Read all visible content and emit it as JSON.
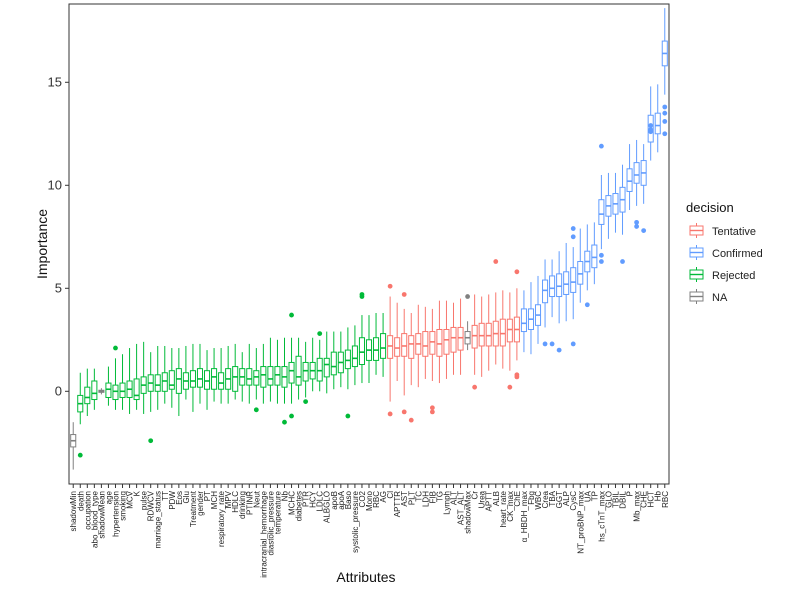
{
  "chart_data": {
    "type": "boxplot",
    "title": "",
    "xlabel": "Attributes",
    "ylabel": "Importance",
    "ylim": [
      -4.5,
      18.8
    ],
    "yticks": [
      0,
      5,
      10,
      15
    ],
    "grid": false,
    "legend": {
      "title": "decision",
      "placement": "right",
      "entries": [
        {
          "name": "Tentative",
          "color": "#F8766D"
        },
        {
          "name": "Confirmed",
          "color": "#619CFF"
        },
        {
          "name": "Rejected",
          "color": "#00BA38"
        },
        {
          "name": "NA",
          "color": "#808080"
        }
      ]
    },
    "items": [
      {
        "name": "shadowMin",
        "decision": "NA",
        "min": -3.8,
        "q1": -2.7,
        "median": -2.4,
        "q3": -2.1,
        "max": -1.5,
        "outliers": []
      },
      {
        "name": "death",
        "decision": "Rejected",
        "min": -1.6,
        "q1": -1.0,
        "median": -0.6,
        "q3": -0.2,
        "max": 0.9,
        "outliers": [
          -3.1
        ]
      },
      {
        "name": "occupation",
        "decision": "Rejected",
        "min": -1.2,
        "q1": -0.6,
        "median": -0.3,
        "q3": 0.2,
        "max": 1.1,
        "outliers": []
      },
      {
        "name": "abo_blood_type",
        "decision": "Rejected",
        "min": -0.9,
        "q1": -0.4,
        "median": -0.1,
        "q3": 0.5,
        "max": 1.1,
        "outliers": []
      },
      {
        "name": "shadowMean",
        "decision": "NA",
        "min": -0.15,
        "q1": -0.05,
        "median": 0.0,
        "q3": 0.05,
        "max": 0.15,
        "outliers": []
      },
      {
        "name": "age",
        "decision": "Rejected",
        "min": -0.7,
        "q1": -0.3,
        "median": 0.1,
        "q3": 0.4,
        "max": 1.2,
        "outliers": []
      },
      {
        "name": "hypertension",
        "decision": "Rejected",
        "min": -0.9,
        "q1": -0.4,
        "median": 0.0,
        "q3": 0.3,
        "max": 1.6,
        "outliers": [
          2.1
        ]
      },
      {
        "name": "smoking",
        "decision": "Rejected",
        "min": -0.9,
        "q1": -0.3,
        "median": 0.0,
        "q3": 0.4,
        "max": 1.8,
        "outliers": []
      },
      {
        "name": "MCV",
        "decision": "Rejected",
        "min": -1.1,
        "q1": -0.3,
        "median": 0.1,
        "q3": 0.5,
        "max": 2.1,
        "outliers": []
      },
      {
        "name": "K",
        "decision": "Rejected",
        "min": -0.9,
        "q1": -0.4,
        "median": -0.2,
        "q3": 0.6,
        "max": 2.3,
        "outliers": []
      },
      {
        "name": "pulse",
        "decision": "Rejected",
        "min": -1.1,
        "q1": -0.1,
        "median": 0.3,
        "q3": 0.7,
        "max": 2.4,
        "outliers": []
      },
      {
        "name": "RDWCV",
        "decision": "Rejected",
        "min": -1.0,
        "q1": 0.0,
        "median": 0.4,
        "q3": 0.8,
        "max": 1.9,
        "outliers": [
          -2.4
        ]
      },
      {
        "name": "marriage_status",
        "decision": "Rejected",
        "min": -0.9,
        "q1": 0.0,
        "median": 0.3,
        "q3": 0.8,
        "max": 2.2,
        "outliers": []
      },
      {
        "name": "TT",
        "decision": "Rejected",
        "min": -0.6,
        "q1": 0.0,
        "median": 0.5,
        "q3": 0.9,
        "max": 2.2,
        "outliers": []
      },
      {
        "name": "PDW",
        "decision": "Rejected",
        "min": -0.8,
        "q1": 0.1,
        "median": 0.3,
        "q3": 1.0,
        "max": 2.1,
        "outliers": []
      },
      {
        "name": "Eos",
        "decision": "Rejected",
        "min": -1.2,
        "q1": -0.1,
        "median": 0.6,
        "q3": 1.1,
        "max": 2.1,
        "outliers": []
      },
      {
        "name": "Glu",
        "decision": "Rejected",
        "min": -0.4,
        "q1": 0.1,
        "median": 0.5,
        "q3": 0.9,
        "max": 2.2,
        "outliers": []
      },
      {
        "name": "Treatment",
        "decision": "Rejected",
        "min": -1.0,
        "q1": 0.2,
        "median": 0.5,
        "q3": 1.0,
        "max": 2.3,
        "outliers": []
      },
      {
        "name": "gender",
        "decision": "Rejected",
        "min": -0.6,
        "q1": 0.2,
        "median": 0.6,
        "q3": 1.1,
        "max": 2.3,
        "outliers": []
      },
      {
        "name": "PT",
        "decision": "Rejected",
        "min": -0.9,
        "q1": 0.1,
        "median": 0.5,
        "q3": 1.0,
        "max": 2.0,
        "outliers": []
      },
      {
        "name": "MCH",
        "decision": "Rejected",
        "min": -0.5,
        "q1": 0.1,
        "median": 0.7,
        "q3": 1.1,
        "max": 2.1,
        "outliers": []
      },
      {
        "name": "respiratory_rate",
        "decision": "Rejected",
        "min": -0.6,
        "q1": 0.1,
        "median": 0.4,
        "q3": 0.9,
        "max": 2.1,
        "outliers": []
      },
      {
        "name": "MPV",
        "decision": "Rejected",
        "min": -0.6,
        "q1": 0.1,
        "median": 0.6,
        "q3": 1.1,
        "max": 2.2,
        "outliers": []
      },
      {
        "name": "HDLC",
        "decision": "Rejected",
        "min": -0.4,
        "q1": 0.0,
        "median": 0.7,
        "q3": 1.2,
        "max": 2.3,
        "outliers": []
      },
      {
        "name": "drinking",
        "decision": "Rejected",
        "min": -0.5,
        "q1": 0.3,
        "median": 0.7,
        "q3": 1.1,
        "max": 1.9,
        "outliers": []
      },
      {
        "name": "PTINR",
        "decision": "Rejected",
        "min": -0.6,
        "q1": 0.3,
        "median": 0.6,
        "q3": 1.1,
        "max": 2.3,
        "outliers": []
      },
      {
        "name": "Neut",
        "decision": "Rejected",
        "min": -0.4,
        "q1": 0.3,
        "median": 0.7,
        "q3": 1.0,
        "max": 2.1,
        "outliers": [
          -0.9
        ]
      },
      {
        "name": "intracranial_hemorrhage",
        "decision": "Rejected",
        "min": -0.6,
        "q1": 0.2,
        "median": 0.8,
        "q3": 1.2,
        "max": 2.3,
        "outliers": []
      },
      {
        "name": "diastolic_pressure",
        "decision": "Rejected",
        "min": -0.5,
        "q1": 0.3,
        "median": 0.6,
        "q3": 1.2,
        "max": 2.6,
        "outliers": []
      },
      {
        "name": "temperature",
        "decision": "Rejected",
        "min": -0.6,
        "q1": 0.3,
        "median": 0.8,
        "q3": 1.2,
        "max": 2.5,
        "outliers": []
      },
      {
        "name": "Nb",
        "decision": "Rejected",
        "min": -0.6,
        "q1": 0.2,
        "median": 0.7,
        "q3": 1.2,
        "max": 2.6,
        "outliers": [
          -1.5
        ]
      },
      {
        "name": "MCHC",
        "decision": "Rejected",
        "min": -0.6,
        "q1": 0.4,
        "median": 1.0,
        "q3": 1.4,
        "max": 2.6,
        "outliers": [
          3.7,
          -1.2
        ]
      },
      {
        "name": "diabetes",
        "decision": "Rejected",
        "min": -0.4,
        "q1": 0.3,
        "median": 0.7,
        "q3": 1.7,
        "max": 2.6,
        "outliers": []
      },
      {
        "name": "PTR",
        "decision": "Rejected",
        "min": -0.3,
        "q1": 0.5,
        "median": 1.0,
        "q3": 1.4,
        "max": 2.4,
        "outliers": [
          -0.5
        ]
      },
      {
        "name": "HCY",
        "decision": "Rejected",
        "min": 0.0,
        "q1": 0.6,
        "median": 1.0,
        "q3": 1.4,
        "max": 2.6,
        "outliers": []
      },
      {
        "name": "LDLC",
        "decision": "Rejected",
        "min": 0.0,
        "q1": 0.5,
        "median": 1.0,
        "q3": 1.6,
        "max": 2.5,
        "outliers": [
          2.8
        ]
      },
      {
        "name": "ALBGLO",
        "decision": "Rejected",
        "min": -0.1,
        "q1": 0.7,
        "median": 1.3,
        "q3": 1.6,
        "max": 2.9,
        "outliers": []
      },
      {
        "name": "apoB",
        "decision": "Rejected",
        "min": 0.1,
        "q1": 0.8,
        "median": 1.2,
        "q3": 1.9,
        "max": 2.9,
        "outliers": []
      },
      {
        "name": "apoA",
        "decision": "Rejected",
        "min": 0.2,
        "q1": 0.9,
        "median": 1.4,
        "q3": 1.9,
        "max": 2.9,
        "outliers": []
      },
      {
        "name": "Baso",
        "decision": "Rejected",
        "min": 0.1,
        "q1": 1.1,
        "median": 1.5,
        "q3": 2.0,
        "max": 3.1,
        "outliers": [
          -1.2
        ]
      },
      {
        "name": "systolic_pressure",
        "decision": "Rejected",
        "min": 0.3,
        "q1": 1.2,
        "median": 1.6,
        "q3": 2.2,
        "max": 3.2,
        "outliers": []
      },
      {
        "name": "CO2",
        "decision": "Rejected",
        "min": 0.4,
        "q1": 1.3,
        "median": 1.9,
        "q3": 2.6,
        "max": 3.7,
        "outliers": [
          4.6,
          4.7
        ]
      },
      {
        "name": "Mono",
        "decision": "Rejected",
        "min": 0.4,
        "q1": 1.5,
        "median": 2.0,
        "q3": 2.5,
        "max": 3.7,
        "outliers": []
      },
      {
        "name": "RBC",
        "decision": "Rejected",
        "min": 0.8,
        "q1": 1.5,
        "median": 2.0,
        "q3": 2.6,
        "max": 3.8,
        "outliers": []
      },
      {
        "name": "AG",
        "decision": "Rejected",
        "min": 0.7,
        "q1": 1.6,
        "median": 2.1,
        "q3": 2.8,
        "max": 3.8,
        "outliers": []
      },
      {
        "name": "Cl",
        "decision": "Tentative",
        "min": -0.5,
        "q1": 1.6,
        "median": 2.2,
        "q3": 2.7,
        "max": 4.6,
        "outliers": [
          5.1,
          -1.1
        ]
      },
      {
        "name": "APTTR",
        "decision": "Tentative",
        "min": 0.5,
        "q1": 1.7,
        "median": 2.1,
        "q3": 2.6,
        "max": 4.3,
        "outliers": []
      },
      {
        "name": "AST",
        "decision": "Tentative",
        "min": -0.2,
        "q1": 1.7,
        "median": 2.2,
        "q3": 2.8,
        "max": 4.0,
        "outliers": [
          4.7,
          -1.0
        ]
      },
      {
        "name": "PLT",
        "decision": "Tentative",
        "min": 0.3,
        "q1": 1.6,
        "median": 2.3,
        "q3": 2.7,
        "max": 3.8,
        "outliers": [
          -1.4
        ]
      },
      {
        "name": "TC",
        "decision": "Tentative",
        "min": 0.2,
        "q1": 1.8,
        "median": 2.3,
        "q3": 2.8,
        "max": 4.2,
        "outliers": []
      },
      {
        "name": "LDH",
        "decision": "Tentative",
        "min": 0.6,
        "q1": 1.7,
        "median": 2.2,
        "q3": 2.9,
        "max": 4.1,
        "outliers": []
      },
      {
        "name": "FIB",
        "decision": "Tentative",
        "min": 0.5,
        "q1": 1.8,
        "median": 2.4,
        "q3": 2.9,
        "max": 4.0,
        "outliers": [
          -0.8,
          -1.0
        ]
      },
      {
        "name": "TG",
        "decision": "Tentative",
        "min": 0.4,
        "q1": 1.7,
        "median": 2.3,
        "q3": 3.0,
        "max": 4.4,
        "outliers": []
      },
      {
        "name": "Lymph",
        "decision": "Tentative",
        "min": 0.6,
        "q1": 1.8,
        "median": 2.5,
        "q3": 3.0,
        "max": 4.4,
        "outliers": []
      },
      {
        "name": "ALT",
        "decision": "Tentative",
        "min": 0.8,
        "q1": 1.9,
        "median": 2.6,
        "q3": 3.1,
        "max": 4.3,
        "outliers": []
      },
      {
        "name": "AST_ALT",
        "decision": "Tentative",
        "min": 0.8,
        "q1": 2.0,
        "median": 2.6,
        "q3": 3.1,
        "max": 4.5,
        "outliers": []
      },
      {
        "name": "shadowMax",
        "decision": "NA",
        "min": 2.0,
        "q1": 2.3,
        "median": 2.6,
        "q3": 2.9,
        "max": 3.4,
        "outliers": [
          4.6
        ]
      },
      {
        "name": "Cr",
        "decision": "Tentative",
        "min": 0.8,
        "q1": 2.1,
        "median": 2.7,
        "q3": 3.2,
        "max": 4.7,
        "outliers": [
          0.2
        ]
      },
      {
        "name": "Urea",
        "decision": "Tentative",
        "min": 0.7,
        "q1": 2.2,
        "median": 2.7,
        "q3": 3.3,
        "max": 4.6,
        "outliers": []
      },
      {
        "name": "APTT",
        "decision": "Tentative",
        "min": 1.0,
        "q1": 2.2,
        "median": 2.7,
        "q3": 3.3,
        "max": 4.7,
        "outliers": []
      },
      {
        "name": "ALB",
        "decision": "Tentative",
        "min": 1.3,
        "q1": 2.2,
        "median": 2.8,
        "q3": 3.4,
        "max": 4.8,
        "outliers": [
          6.3
        ]
      },
      {
        "name": "heart_rate",
        "decision": "Tentative",
        "min": 1.1,
        "q1": 2.2,
        "median": 2.8,
        "q3": 3.5,
        "max": 4.9,
        "outliers": []
      },
      {
        "name": "CK_max",
        "decision": "Tentative",
        "min": 1.0,
        "q1": 2.4,
        "median": 3.0,
        "q3": 3.5,
        "max": 4.8,
        "outliers": [
          0.2
        ]
      },
      {
        "name": "ChE",
        "decision": "Tentative",
        "min": 1.5,
        "q1": 2.4,
        "median": 3.0,
        "q3": 3.6,
        "max": 5.0,
        "outliers": [
          5.8,
          0.7,
          0.8
        ]
      },
      {
        "name": "α_HBDH_max",
        "decision": "Confirmed",
        "min": 1.9,
        "q1": 2.9,
        "median": 3.3,
        "q3": 4.0,
        "max": 4.9,
        "outliers": []
      },
      {
        "name": "Fbg",
        "decision": "Confirmed",
        "min": 1.8,
        "q1": 3.0,
        "median": 3.5,
        "q3": 4.0,
        "max": 5.3,
        "outliers": []
      },
      {
        "name": "WBC",
        "decision": "Confirmed",
        "min": 2.3,
        "q1": 3.2,
        "median": 3.7,
        "q3": 4.2,
        "max": 5.6,
        "outliers": []
      },
      {
        "name": "Crea",
        "decision": "Confirmed",
        "min": 3.1,
        "q1": 4.3,
        "median": 4.9,
        "q3": 5.4,
        "max": 6.4,
        "outliers": [
          2.3
        ]
      },
      {
        "name": "TBA",
        "decision": "Confirmed",
        "min": 3.6,
        "q1": 4.6,
        "median": 5.0,
        "q3": 5.6,
        "max": 6.4,
        "outliers": [
          2.3
        ]
      },
      {
        "name": "GGT",
        "decision": "Confirmed",
        "min": 3.3,
        "q1": 4.6,
        "median": 5.1,
        "q3": 5.7,
        "max": 6.8,
        "outliers": [
          2.0
        ]
      },
      {
        "name": "ALP",
        "decision": "Confirmed",
        "min": 3.4,
        "q1": 4.7,
        "median": 5.2,
        "q3": 5.8,
        "max": 7.2,
        "outliers": []
      },
      {
        "name": "CysC",
        "decision": "Confirmed",
        "min": 3.5,
        "q1": 4.8,
        "median": 5.3,
        "q3": 6.0,
        "max": 7.0,
        "outliers": [
          7.9,
          7.5,
          2.3
        ]
      },
      {
        "name": "NT_proBNP_max",
        "decision": "Confirmed",
        "min": 4.3,
        "q1": 5.2,
        "median": 5.7,
        "q3": 6.3,
        "max": 7.9,
        "outliers": []
      },
      {
        "name": "UA",
        "decision": "Confirmed",
        "min": 4.9,
        "q1": 5.8,
        "median": 6.3,
        "q3": 6.8,
        "max": 8.1,
        "outliers": [
          4.2
        ]
      },
      {
        "name": "TP",
        "decision": "Confirmed",
        "min": 5.2,
        "q1": 6.0,
        "median": 6.5,
        "q3": 7.1,
        "max": 8.2,
        "outliers": []
      },
      {
        "name": "hs_cTnT_max",
        "decision": "Confirmed",
        "min": 6.9,
        "q1": 8.1,
        "median": 8.6,
        "q3": 9.3,
        "max": 10.5,
        "outliers": [
          11.9,
          6.6,
          6.3
        ]
      },
      {
        "name": "GLO",
        "decision": "Confirmed",
        "min": 7.4,
        "q1": 8.5,
        "median": 9.0,
        "q3": 9.5,
        "max": 10.6,
        "outliers": []
      },
      {
        "name": "TBIL",
        "decision": "Confirmed",
        "min": 7.7,
        "q1": 8.6,
        "median": 9.1,
        "q3": 9.6,
        "max": 10.6,
        "outliers": []
      },
      {
        "name": "DBIL",
        "decision": "Confirmed",
        "min": 7.6,
        "q1": 8.7,
        "median": 9.3,
        "q3": 9.9,
        "max": 11.0,
        "outliers": [
          6.3
        ]
      },
      {
        "name": "P",
        "decision": "Confirmed",
        "min": 8.8,
        "q1": 9.7,
        "median": 10.2,
        "q3": 10.8,
        "max": 12.0,
        "outliers": []
      },
      {
        "name": "Mb_max",
        "decision": "Confirmed",
        "min": 9.0,
        "q1": 10.1,
        "median": 10.5,
        "q3": 11.1,
        "max": 12.2,
        "outliers": [
          8.2,
          8.0
        ]
      },
      {
        "name": "CHE",
        "decision": "Confirmed",
        "min": 9.1,
        "q1": 10.0,
        "median": 10.6,
        "q3": 11.2,
        "max": 12.0,
        "outliers": [
          7.8
        ]
      },
      {
        "name": "HCT",
        "decision": "Confirmed",
        "min": 11.2,
        "q1": 12.1,
        "median": 12.6,
        "q3": 13.4,
        "max": 14.8,
        "outliers": [
          12.9,
          12.7,
          12.6
        ]
      },
      {
        "name": "Hb",
        "decision": "Confirmed",
        "min": 11.6,
        "q1": 12.5,
        "median": 12.9,
        "q3": 13.5,
        "max": 14.9,
        "outliers": []
      },
      {
        "name": "RBC",
        "decision": "Confirmed",
        "min": 14.4,
        "q1": 15.8,
        "median": 16.4,
        "q3": 17.0,
        "max": 18.6,
        "outliers": [
          13.8,
          13.5,
          13.1,
          12.5
        ]
      }
    ]
  }
}
